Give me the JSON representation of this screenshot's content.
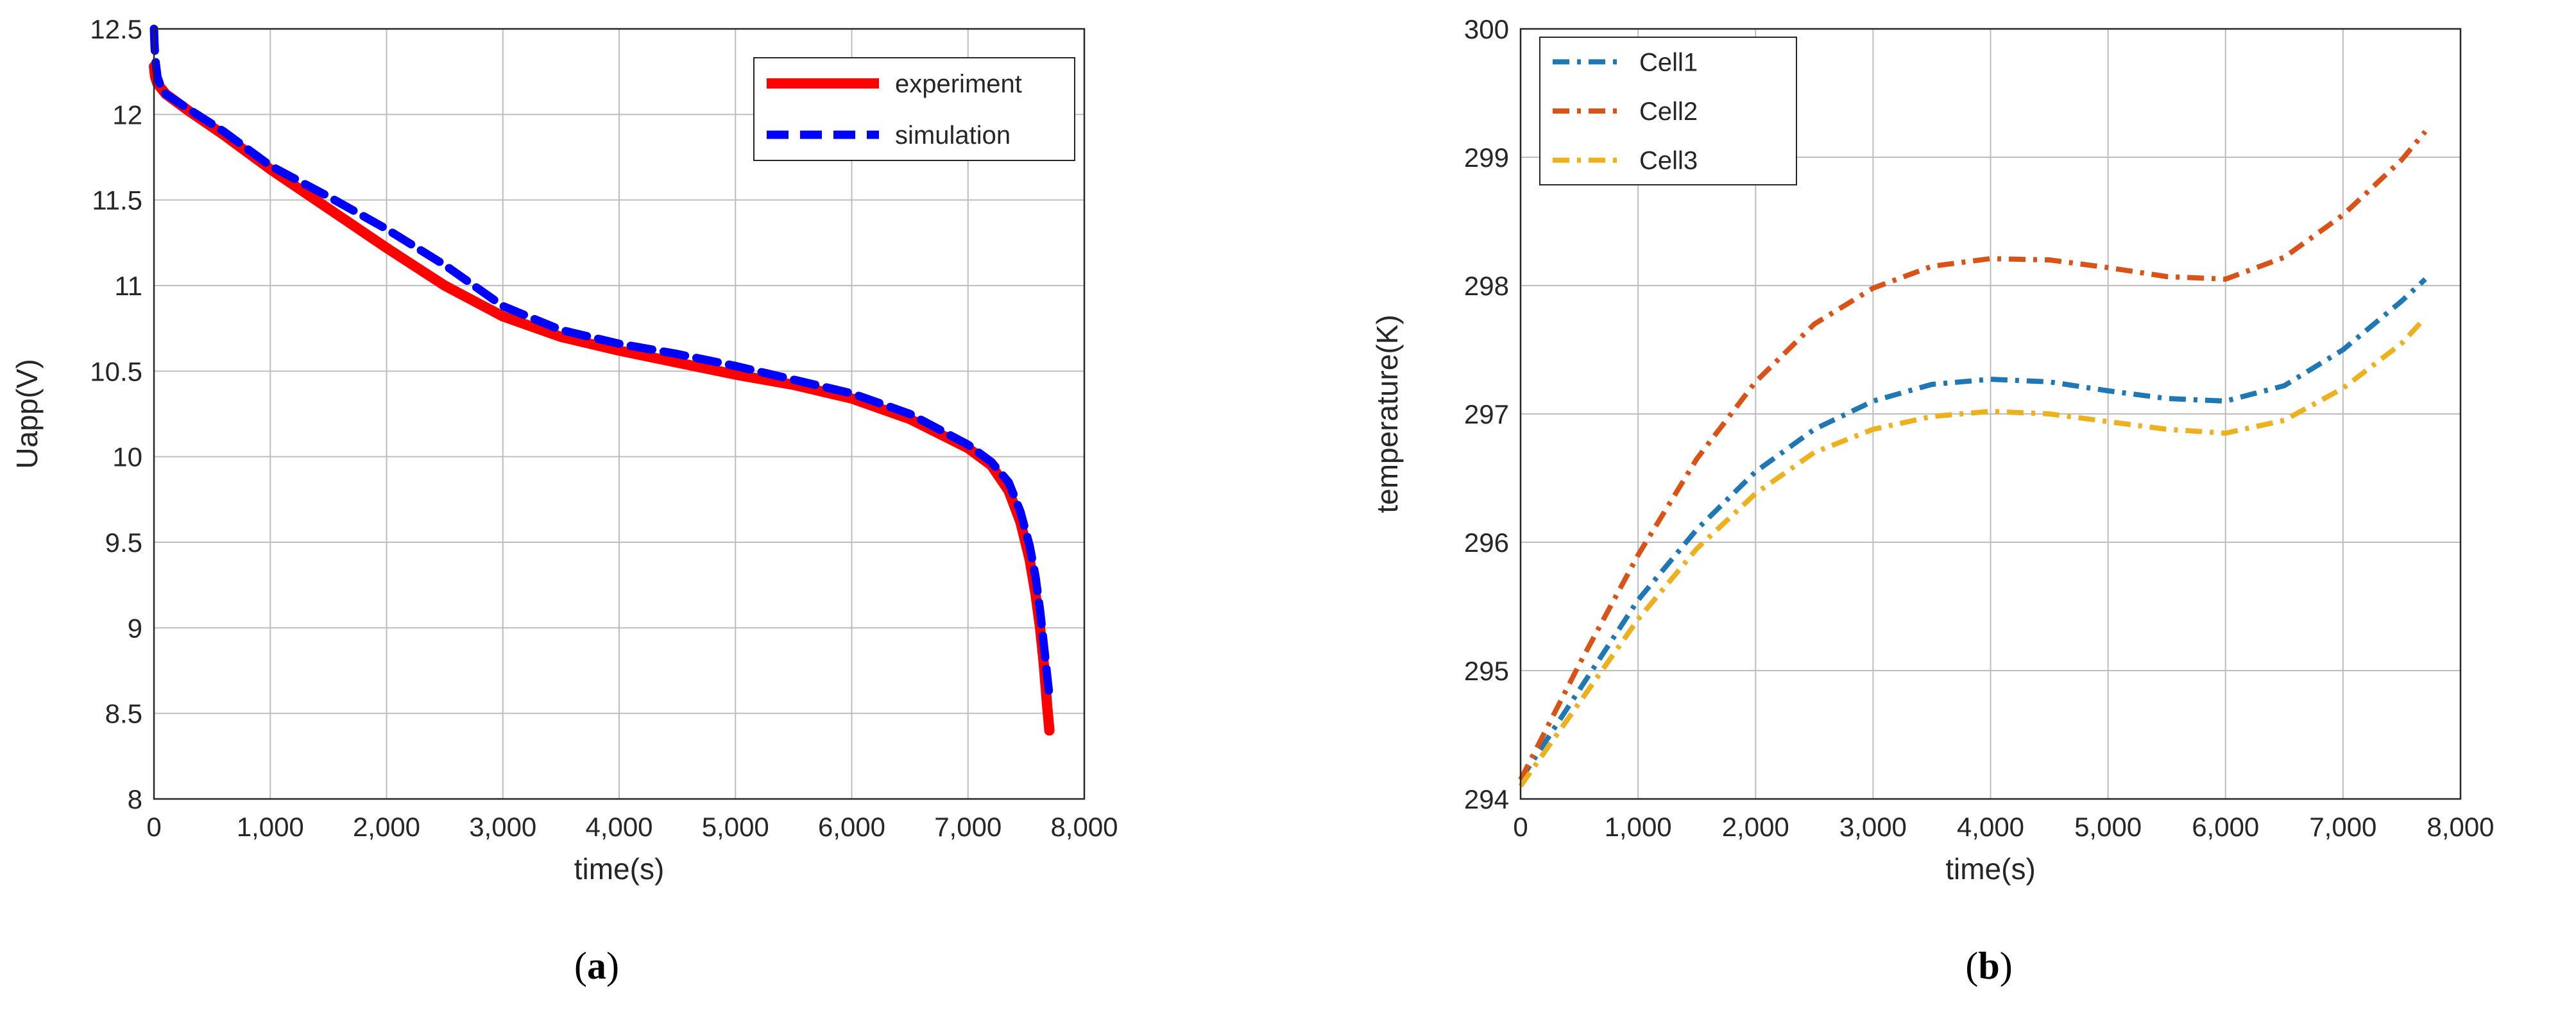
{
  "chart_data": [
    {
      "type": "line",
      "panel_label": "a",
      "title": "",
      "xlabel": "time(s)",
      "ylabel": "Uapp(V)",
      "xlim": [
        0,
        8000
      ],
      "ylim": [
        8,
        12.5
      ],
      "xticks": [
        0,
        1000,
        2000,
        3000,
        4000,
        5000,
        6000,
        7000,
        8000
      ],
      "xtick_labels": [
        "0",
        "1,000",
        "2,000",
        "3,000",
        "4,000",
        "5,000",
        "6,000",
        "7,000",
        "8,000"
      ],
      "yticks": [
        8,
        8.5,
        9,
        9.5,
        10,
        10.5,
        11,
        11.5,
        12,
        12.5
      ],
      "ytick_labels": [
        "8",
        "8.5",
        "9",
        "9.5",
        "10",
        "10.5",
        "11",
        "11.5",
        "12",
        "12.5"
      ],
      "grid": true,
      "legend_position": "top-right",
      "series": [
        {
          "name": "experiment",
          "color": "#ff0000",
          "style": "solid",
          "x": [
            0,
            10,
            30,
            100,
            300,
            600,
            1000,
            1500,
            2000,
            2500,
            3000,
            3500,
            4000,
            4500,
            5000,
            5500,
            6000,
            6500,
            7000,
            7200,
            7350,
            7450,
            7530,
            7580,
            7620,
            7650,
            7680,
            7700
          ],
          "y": [
            12.28,
            12.22,
            12.18,
            12.12,
            12.02,
            11.88,
            11.68,
            11.45,
            11.22,
            11.0,
            10.82,
            10.7,
            10.62,
            10.55,
            10.48,
            10.42,
            10.34,
            10.22,
            10.05,
            9.95,
            9.8,
            9.62,
            9.4,
            9.2,
            9.0,
            8.8,
            8.55,
            8.4
          ]
        },
        {
          "name": "simulation",
          "color": "#0000ff",
          "style": "dash",
          "x": [
            0,
            5,
            15,
            30,
            60,
            100,
            300,
            600,
            1000,
            1500,
            2000,
            2500,
            3000,
            3500,
            4000,
            4500,
            5000,
            5500,
            6000,
            6500,
            7000,
            7200,
            7350,
            7450,
            7530,
            7580,
            7620,
            7660,
            7700
          ],
          "y": [
            12.5,
            12.4,
            12.3,
            12.22,
            12.16,
            12.12,
            12.03,
            11.9,
            11.7,
            11.52,
            11.33,
            11.12,
            10.88,
            10.74,
            10.66,
            10.6,
            10.53,
            10.45,
            10.37,
            10.25,
            10.07,
            9.97,
            9.85,
            9.68,
            9.48,
            9.3,
            9.1,
            8.85,
            8.6
          ]
        }
      ]
    },
    {
      "type": "line",
      "panel_label": "b",
      "title": "",
      "xlabel": "time(s)",
      "ylabel": "temperature(K)",
      "xlim": [
        0,
        8000
      ],
      "ylim": [
        294,
        300
      ],
      "xticks": [
        0,
        1000,
        2000,
        3000,
        4000,
        5000,
        6000,
        7000,
        8000
      ],
      "xtick_labels": [
        "0",
        "1,000",
        "2,000",
        "3,000",
        "4,000",
        "5,000",
        "6,000",
        "7,000",
        "8,000"
      ],
      "yticks": [
        294,
        295,
        296,
        297,
        298,
        299,
        300
      ],
      "ytick_labels": [
        "294",
        "295",
        "296",
        "297",
        "298",
        "299",
        "300"
      ],
      "grid": true,
      "legend_position": "top-left",
      "series": [
        {
          "name": "Cell1",
          "color": "#1f77b4",
          "style": "dashdot",
          "x": [
            0,
            500,
            1000,
            1500,
            2000,
            2500,
            3000,
            3500,
            4000,
            4500,
            5000,
            5500,
            6000,
            6500,
            7000,
            7500,
            7700
          ],
          "y": [
            294.15,
            294.85,
            295.55,
            296.1,
            296.55,
            296.88,
            297.1,
            297.23,
            297.27,
            297.25,
            297.18,
            297.12,
            297.1,
            297.22,
            297.5,
            297.88,
            298.05
          ]
        },
        {
          "name": "Cell2",
          "color": "#d95319",
          "style": "dashdot",
          "x": [
            0,
            500,
            1000,
            1500,
            2000,
            2500,
            3000,
            3500,
            4000,
            4500,
            5000,
            5500,
            6000,
            6500,
            7000,
            7500,
            7700
          ],
          "y": [
            294.15,
            295.05,
            295.9,
            296.65,
            297.25,
            297.7,
            297.98,
            298.15,
            298.21,
            298.2,
            298.14,
            298.07,
            298.05,
            298.22,
            298.55,
            298.98,
            299.2
          ]
        },
        {
          "name": "Cell3",
          "color": "#edb120",
          "style": "dashdot",
          "x": [
            0,
            500,
            1000,
            1500,
            2000,
            2500,
            3000,
            3500,
            4000,
            4500,
            5000,
            5500,
            6000,
            6500,
            7000,
            7500,
            7700
          ],
          "y": [
            294.1,
            294.75,
            295.4,
            295.95,
            296.38,
            296.7,
            296.88,
            296.98,
            297.02,
            297.0,
            296.94,
            296.88,
            296.85,
            296.95,
            297.2,
            297.55,
            297.75
          ]
        }
      ]
    }
  ]
}
